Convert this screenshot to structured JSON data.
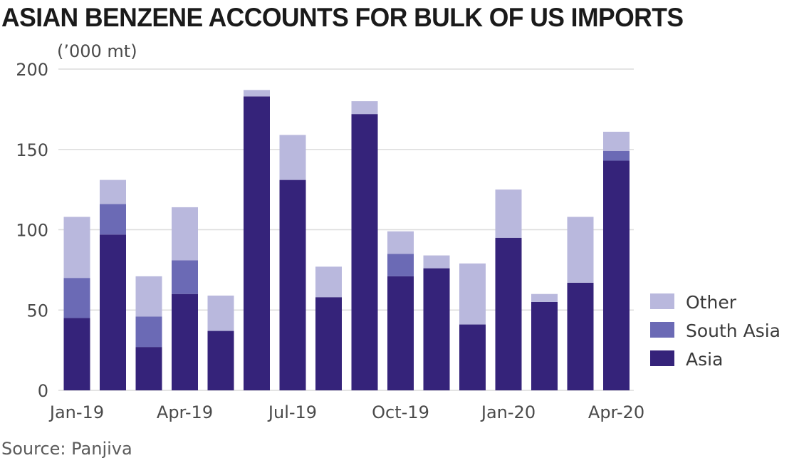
{
  "title": "ASIAN BENZENE ACCOUNTS FOR BULK OF US IMPORTS",
  "source": "Source: Panjiva",
  "colors": {
    "Asia": "#35237a",
    "South Asia": "#6b6ab5",
    "Other": "#b9b8dd",
    "grid": "#dcdcdc"
  },
  "chart_data": {
    "type": "bar",
    "stacked": true,
    "ylabel": "(’000 mt)",
    "ylim": [
      0,
      200
    ],
    "yticks": [
      0,
      50,
      100,
      150,
      200
    ],
    "categories": [
      "Jan-19",
      "Feb-19",
      "Mar-19",
      "Apr-19",
      "May-19",
      "Jun-19",
      "Jul-19",
      "Aug-19",
      "Sep-19",
      "Oct-19",
      "Nov-19",
      "Dec-19",
      "Jan-20",
      "Feb-20",
      "Mar-20",
      "Apr-20"
    ],
    "xtick_labels": [
      "Jan-19",
      "Apr-19",
      "Jul-19",
      "Oct-19",
      "Jan-20",
      "Apr-20"
    ],
    "series": [
      {
        "name": "Asia",
        "values": [
          45,
          97,
          27,
          60,
          37,
          183,
          131,
          58,
          172,
          71,
          76,
          41,
          95,
          55,
          67,
          143
        ]
      },
      {
        "name": "South Asia",
        "values": [
          25,
          19,
          19,
          21,
          0,
          0,
          0,
          0,
          0,
          14,
          0,
          0,
          0,
          0,
          0,
          6
        ]
      },
      {
        "name": "Other",
        "values": [
          38,
          15,
          25,
          33,
          22,
          4,
          28,
          19,
          8,
          14,
          8,
          38,
          30,
          5,
          41,
          12
        ]
      }
    ],
    "legend_position": "right",
    "grid": true
  }
}
